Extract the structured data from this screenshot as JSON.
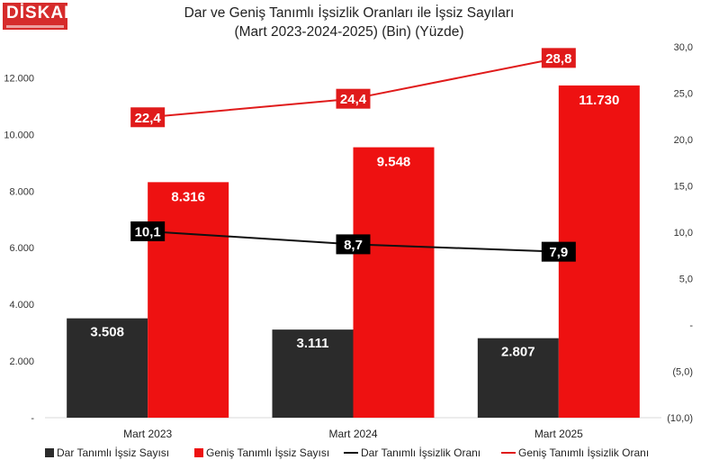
{
  "logo": {
    "text": "DİSKAR"
  },
  "chart_data": {
    "type": "bar",
    "title": "Dar ve Geniş Tanımlı İşsizlik Oranları ile İşsiz Sayıları",
    "subtitle": "(Mart 2023-2024-2025) (Bin) (Yüzde)",
    "categories": [
      "Mart 2023",
      "Mart 2024",
      "Mart 2025"
    ],
    "bar_series": [
      {
        "name": "Dar Tanımlı İşsiz Sayısı",
        "values": [
          3508,
          3111,
          2807
        ],
        "labels": [
          "3.508",
          "3.111",
          "2.807"
        ],
        "color": "#2b2b2b"
      },
      {
        "name": "Geniş Tanımlı İşsiz Sayısı",
        "values": [
          8316,
          9548,
          11730
        ],
        "labels": [
          "8.316",
          "9.548",
          "11.730"
        ],
        "color": "#ee1111"
      }
    ],
    "line_series": [
      {
        "name": "Dar Tanımlı İşsizlik Oranı",
        "values": [
          10.1,
          8.7,
          7.9
        ],
        "labels": [
          "10,1",
          "8,7",
          "7,9"
        ],
        "color": "#111111"
      },
      {
        "name": "Geniş Tanımlı İşsizlik Oranı",
        "values": [
          22.4,
          24.4,
          28.8
        ],
        "labels": [
          "22,4",
          "24,4",
          "28,8"
        ],
        "color": "#e01b1b"
      }
    ],
    "left_axis": {
      "ylim": [
        0,
        13000
      ],
      "ticks": [
        0,
        2000,
        4000,
        6000,
        8000,
        10000,
        12000
      ],
      "tick_labels": [
        "-",
        "2.000",
        "4.000",
        "6.000",
        "8.000",
        "10.000",
        "12.000"
      ]
    },
    "right_axis": {
      "ylim": [
        -10,
        30
      ],
      "ticks": [
        -10,
        -5,
        0,
        5,
        10,
        15,
        20,
        25,
        30
      ],
      "tick_labels": [
        "(10,0)",
        "(5,0)",
        "-",
        "5,0",
        "10,0",
        "15,0",
        "20,0",
        "25,0",
        "30,0"
      ]
    },
    "legend": {
      "position": "bottom"
    },
    "grid": false
  }
}
